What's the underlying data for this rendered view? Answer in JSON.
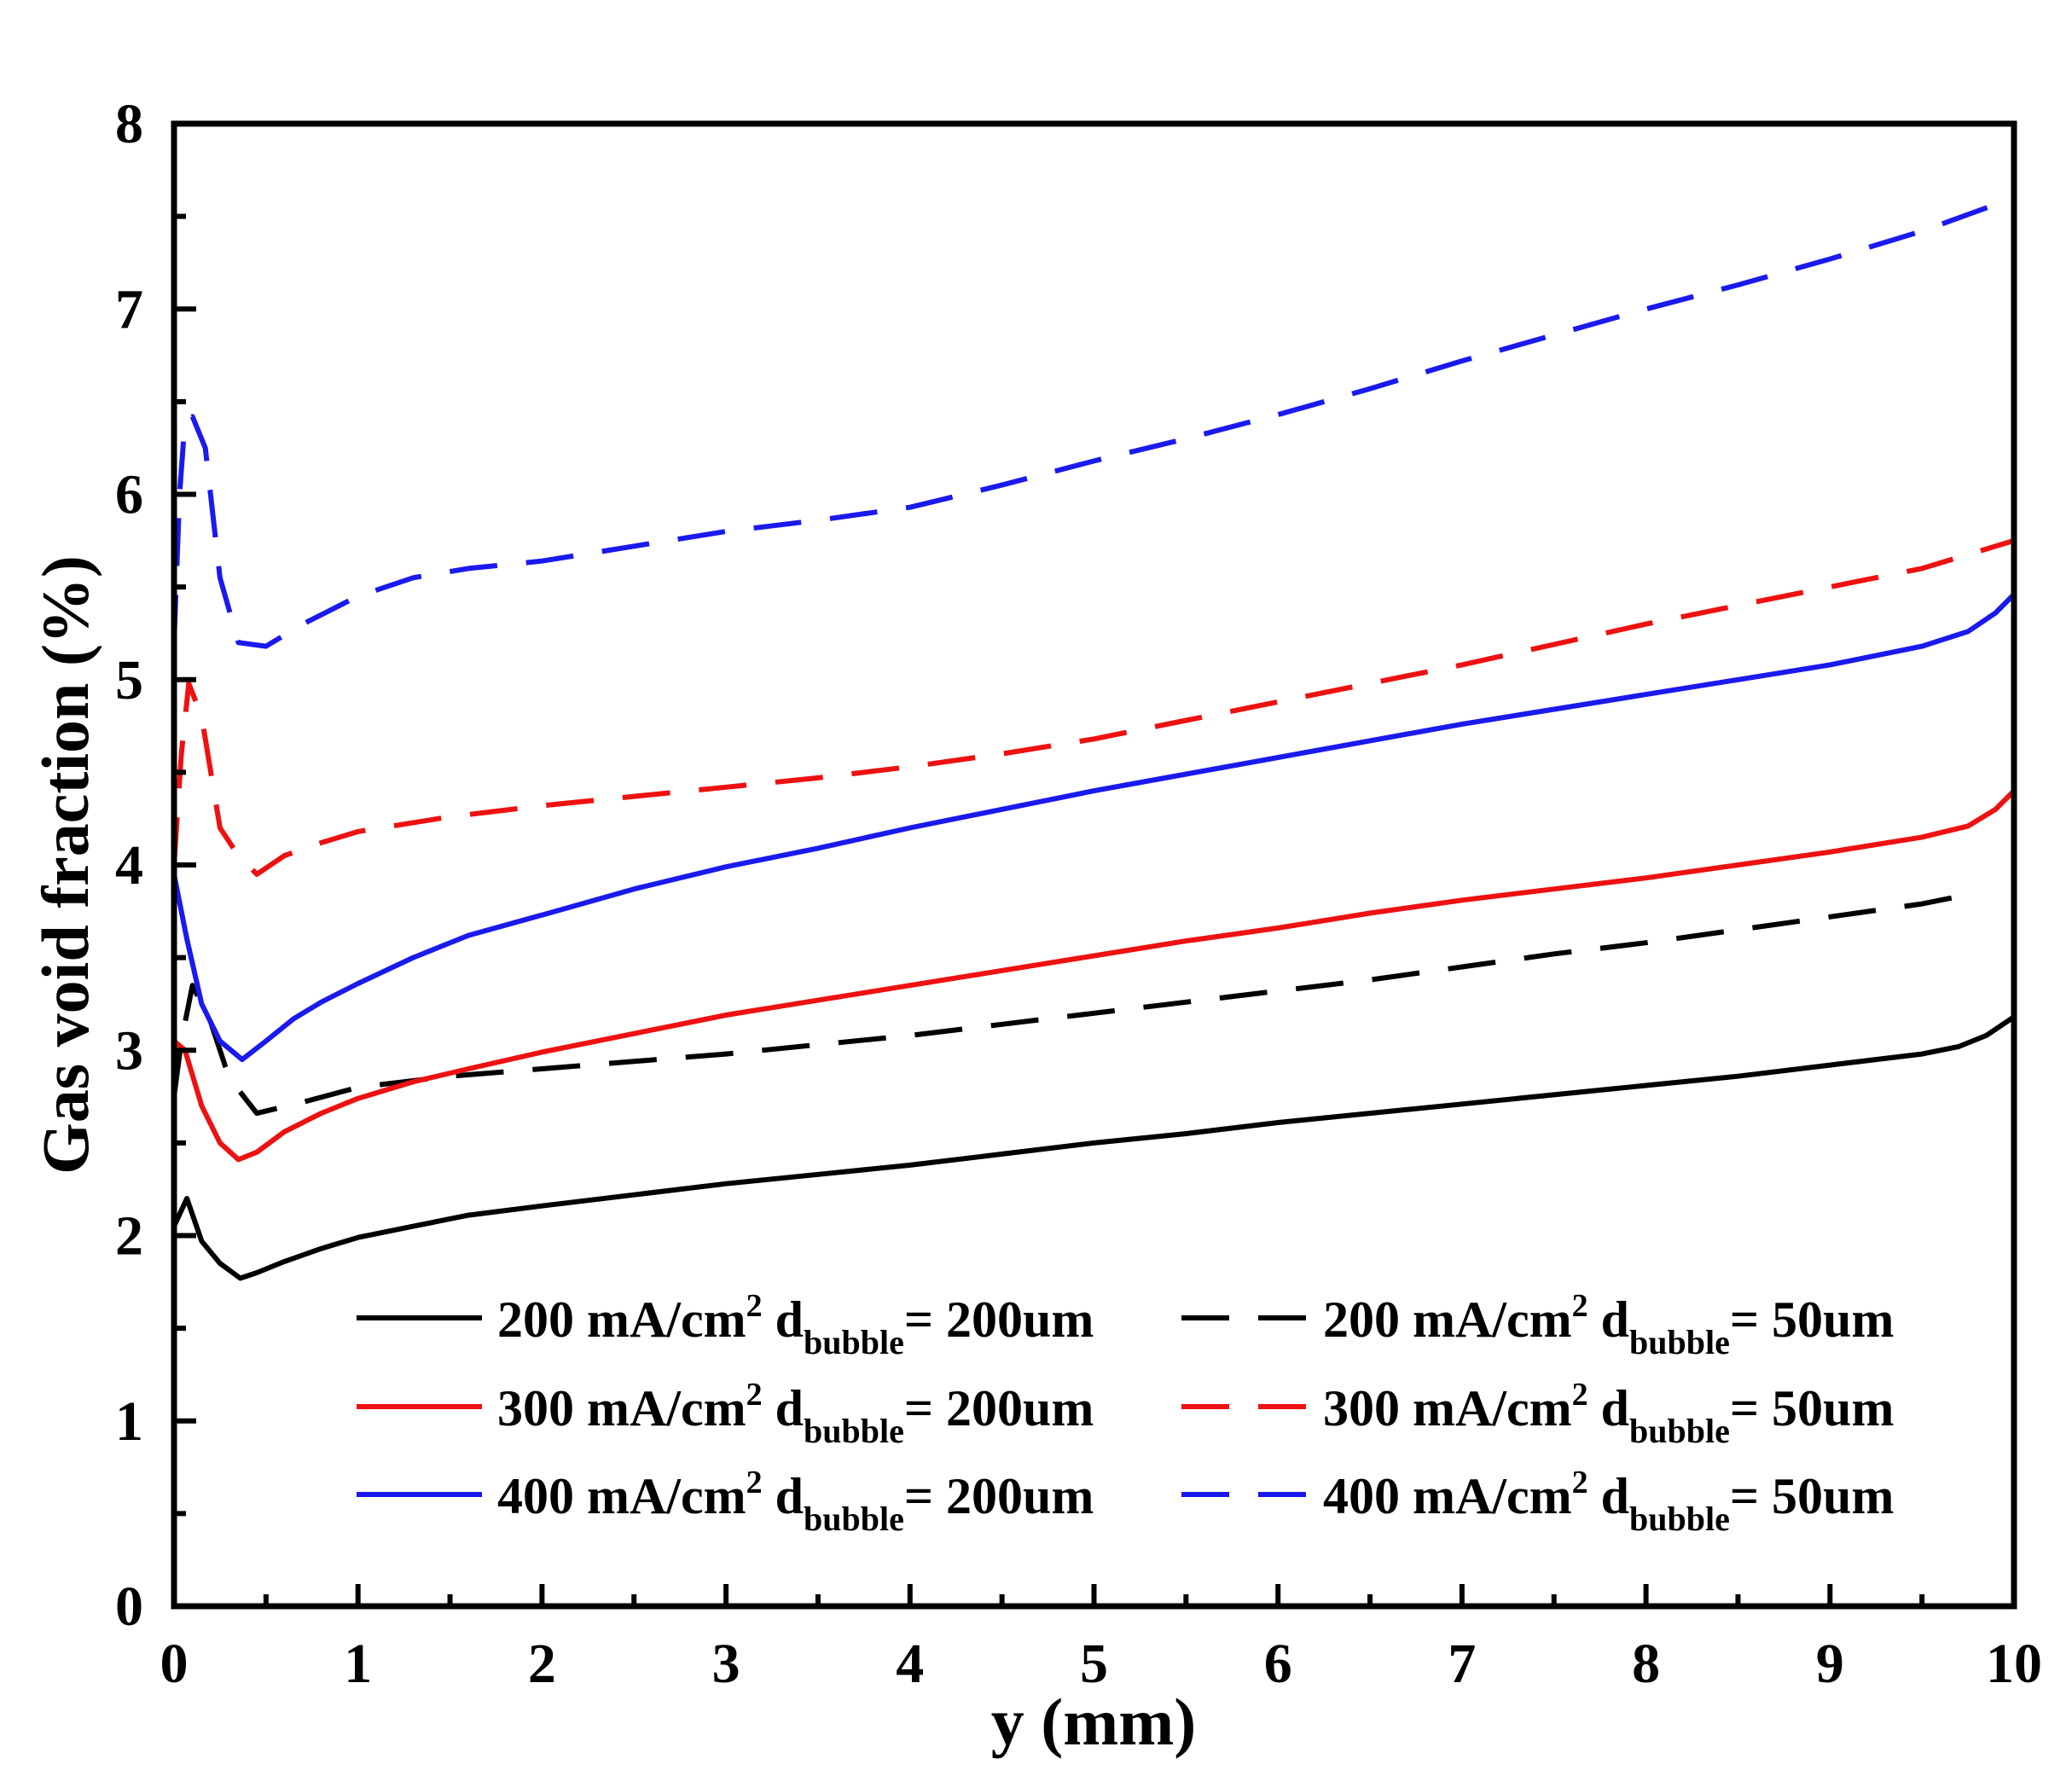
{
  "chart_data": {
    "type": "line",
    "title": "",
    "xlabel": "y (mm)",
    "ylabel": "Gas void fraction (%)",
    "xlim": [
      0,
      10
    ],
    "ylim": [
      0,
      8
    ],
    "xticks": [
      "0",
      "1",
      "2",
      "3",
      "4",
      "5",
      "6",
      "7",
      "8",
      "9",
      "10"
    ],
    "yticks": [
      "0",
      "1",
      "2",
      "3",
      "4",
      "5",
      "6",
      "7",
      "8"
    ],
    "grid": false,
    "legend_position": "bottom-right",
    "legend_unit_base": "mA/cm",
    "legend_unit_exp": "2",
    "legend_d_label": "d",
    "legend_d_sub": "bubble",
    "series": [
      {
        "name": "200 mA/cm2 dbubble= 200um",
        "current": "200",
        "diameter": "= 200um",
        "color": "#000000",
        "dash": "solid",
        "x": [
          0,
          0.07,
          0.15,
          0.25,
          0.36,
          0.45,
          0.6,
          0.8,
          1.0,
          1.3,
          1.6,
          2.0,
          2.5,
          3.0,
          3.5,
          4.0,
          4.5,
          5.0,
          5.5,
          6.0,
          6.5,
          7.0,
          7.5,
          8.0,
          8.5,
          9.0,
          9.5,
          9.7,
          9.85,
          10.0
        ],
        "y": [
          2.05,
          2.2,
          1.97,
          1.85,
          1.77,
          1.8,
          1.86,
          1.93,
          1.99,
          2.05,
          2.11,
          2.16,
          2.22,
          2.28,
          2.33,
          2.38,
          2.44,
          2.5,
          2.55,
          2.61,
          2.66,
          2.71,
          2.76,
          2.81,
          2.86,
          2.92,
          2.98,
          3.02,
          3.08,
          3.18
        ]
      },
      {
        "name": "200 mA/cm2 dbubble= 50um",
        "current": "200",
        "diameter": "= 50um",
        "color": "#000000",
        "dash": "dashed",
        "x": [
          0,
          0.04,
          0.1,
          0.2,
          0.3,
          0.45,
          0.7,
          1.0,
          1.5,
          2.0,
          2.5,
          3.0,
          3.5,
          4.0,
          4.5,
          5.0,
          5.5,
          6.0,
          6.5,
          7.0,
          7.5,
          8.0,
          8.5,
          9.0,
          9.5,
          9.8
        ],
        "y": [
          2.75,
          3.05,
          3.35,
          3.15,
          2.85,
          2.66,
          2.72,
          2.8,
          2.86,
          2.9,
          2.94,
          2.98,
          3.03,
          3.08,
          3.14,
          3.2,
          3.26,
          3.32,
          3.38,
          3.45,
          3.52,
          3.58,
          3.65,
          3.72,
          3.79,
          3.85
        ]
      },
      {
        "name": "300 mA/cm2 dbubble= 200um",
        "current": "300",
        "diameter": "= 200um",
        "color": "#ee1111",
        "dash": "solid",
        "x": [
          0,
          0.06,
          0.15,
          0.25,
          0.35,
          0.45,
          0.6,
          0.8,
          1.0,
          1.3,
          1.6,
          2.0,
          2.5,
          3.0,
          3.5,
          4.0,
          4.5,
          5.0,
          5.5,
          6.0,
          6.5,
          7.0,
          7.5,
          8.0,
          8.5,
          9.0,
          9.5,
          9.75,
          9.9,
          10.0
        ],
        "y": [
          3.05,
          3.0,
          2.7,
          2.5,
          2.41,
          2.45,
          2.56,
          2.66,
          2.74,
          2.83,
          2.9,
          2.99,
          3.09,
          3.19,
          3.27,
          3.35,
          3.43,
          3.51,
          3.59,
          3.66,
          3.74,
          3.81,
          3.87,
          3.93,
          4.0,
          4.07,
          4.15,
          4.21,
          4.3,
          4.4
        ]
      },
      {
        "name": "300 mA/cm2 dbubble= 50um",
        "current": "300",
        "diameter": "= 50um",
        "color": "#ee1111",
        "dash": "dashed",
        "x": [
          0,
          0.04,
          0.08,
          0.15,
          0.25,
          0.35,
          0.45,
          0.6,
          0.8,
          1.0,
          1.5,
          2.0,
          2.5,
          3.0,
          3.5,
          4.0,
          4.5,
          5.0,
          5.5,
          6.0,
          6.5,
          7.0,
          7.5,
          8.0,
          8.5,
          9.0,
          9.5,
          10.0
        ],
        "y": [
          4.0,
          4.6,
          4.98,
          4.8,
          4.2,
          4.05,
          3.95,
          4.05,
          4.12,
          4.18,
          4.26,
          4.32,
          4.37,
          4.42,
          4.47,
          4.53,
          4.6,
          4.68,
          4.78,
          4.88,
          4.98,
          5.08,
          5.19,
          5.3,
          5.4,
          5.5,
          5.6,
          5.75
        ]
      },
      {
        "name": "400 mA/cm2 dbubble= 200um",
        "current": "400",
        "diameter": "= 200um",
        "color": "#1a1aee",
        "dash": "solid",
        "x": [
          0,
          0.07,
          0.15,
          0.25,
          0.37,
          0.5,
          0.65,
          0.8,
          1.0,
          1.3,
          1.6,
          2.0,
          2.5,
          3.0,
          3.5,
          4.0,
          4.5,
          5.0,
          5.5,
          6.0,
          6.5,
          7.0,
          7.5,
          8.0,
          8.5,
          9.0,
          9.5,
          9.75,
          9.9,
          10.0
        ],
        "y": [
          3.95,
          3.6,
          3.25,
          3.05,
          2.95,
          3.05,
          3.17,
          3.26,
          3.36,
          3.5,
          3.62,
          3.73,
          3.87,
          3.99,
          4.09,
          4.2,
          4.3,
          4.4,
          4.49,
          4.58,
          4.67,
          4.76,
          4.84,
          4.92,
          5.0,
          5.08,
          5.18,
          5.26,
          5.36,
          5.46
        ]
      },
      {
        "name": "400 mA/cm2 dbubble= 50um",
        "current": "400",
        "diameter": "= 50um",
        "color": "#1a1aee",
        "dash": "dashed",
        "x": [
          0,
          0.03,
          0.06,
          0.1,
          0.17,
          0.25,
          0.35,
          0.5,
          0.7,
          1.0,
          1.3,
          1.6,
          2.0,
          2.5,
          3.0,
          3.5,
          4.0,
          4.5,
          5.0,
          5.5,
          6.0,
          6.5,
          7.0,
          7.5,
          8.0,
          8.5,
          9.0,
          9.5,
          10.0
        ],
        "y": [
          5.2,
          6.0,
          6.4,
          6.42,
          6.25,
          5.55,
          5.2,
          5.18,
          5.3,
          5.45,
          5.55,
          5.6,
          5.64,
          5.72,
          5.8,
          5.86,
          5.93,
          6.05,
          6.18,
          6.3,
          6.43,
          6.57,
          6.72,
          6.86,
          7.0,
          7.13,
          7.27,
          7.42,
          7.6
        ]
      }
    ]
  }
}
